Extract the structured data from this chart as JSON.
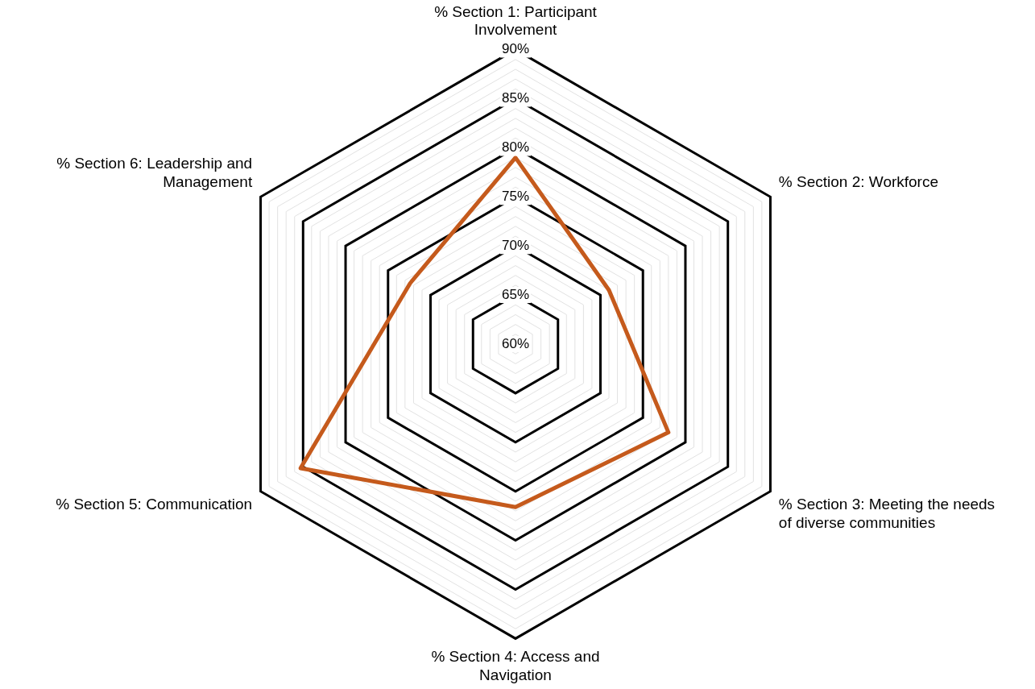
{
  "chart_data": {
    "type": "radar",
    "categories": [
      "% Section 1: Participant Involvement",
      "% Section 2: Workforce",
      "% Section 3: Meeting the needs of diverse communities",
      "% Section 4: Access and Navigation",
      "% Section 5: Communication",
      "% Section 6: Leadership and Management"
    ],
    "series": [
      {
        "color": "#c55a1c",
        "values": [
          79,
          71,
          78,
          76.6,
          85.3,
          72.4
        ]
      }
    ],
    "ylim": [
      60,
      90
    ],
    "yticks": [
      {
        "value": 60,
        "label": "60%"
      },
      {
        "value": 65,
        "label": "65%"
      },
      {
        "value": 70,
        "label": "70%"
      },
      {
        "value": 75,
        "label": "75%"
      },
      {
        "value": 80,
        "label": "80%"
      },
      {
        "value": 85,
        "label": "85%"
      },
      {
        "value": 90,
        "label": "90%"
      }
    ],
    "grid": true,
    "legend": false,
    "marker": "none",
    "line_style": "solid"
  }
}
